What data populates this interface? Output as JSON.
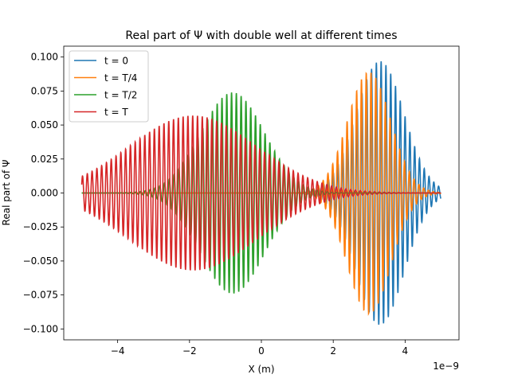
{
  "chart_data": {
    "type": "line",
    "title": "Real part of Ψ with double well at different times",
    "xlabel": "X (m)",
    "ylabel": "Real part of Ψ",
    "x_offset_label": "1e−9",
    "xlim": [
      -5.5e-09,
      5.5e-09
    ],
    "ylim": [
      -0.108,
      0.108
    ],
    "xticks": [
      -4e-09,
      -2e-09,
      0,
      2e-09,
      4e-09
    ],
    "xtick_labels": [
      "−4",
      "−2",
      "0",
      "2",
      "4"
    ],
    "yticks": [
      -0.1,
      -0.075,
      -0.05,
      -0.025,
      0.0,
      0.025,
      0.05,
      0.075,
      0.1
    ],
    "ytick_labels": [
      "−0.100",
      "−0.075",
      "−0.050",
      "−0.025",
      "0.000",
      "0.025",
      "0.050",
      "0.075",
      "0.100"
    ],
    "grid": false,
    "legend_position": "top-left",
    "x_range": [
      -5e-09,
      5e-09
    ],
    "series": [
      {
        "name": "t = 0",
        "color": "#1f77b4",
        "shape": "oscillating packet",
        "envelope_center": 3.3e-09,
        "envelope_width": 9.5e-10,
        "peak_amplitude": 0.097,
        "cycles_per_nm": 7.5
      },
      {
        "name": "t = T/4",
        "color": "#ff7f0e",
        "shape": "oscillating packet",
        "envelope_center": 3e-09,
        "envelope_width": 8.5e-10,
        "peak_amplitude": 0.089,
        "cycles_per_nm": 7.5
      },
      {
        "name": "t = T/2",
        "color": "#2ca02c",
        "shape": "oscillating packet",
        "envelope_center": -8e-10,
        "envelope_width": 1.25e-09,
        "peak_amplitude": 0.074,
        "cycles_per_nm": 7.5
      },
      {
        "name": "t = T",
        "color": "#d62728",
        "shape": "oscillating packet",
        "envelope_center": -1.9e-09,
        "envelope_width": 2.5e-09,
        "peak_amplitude": 0.057,
        "cycles_per_nm": 7.5
      }
    ]
  }
}
